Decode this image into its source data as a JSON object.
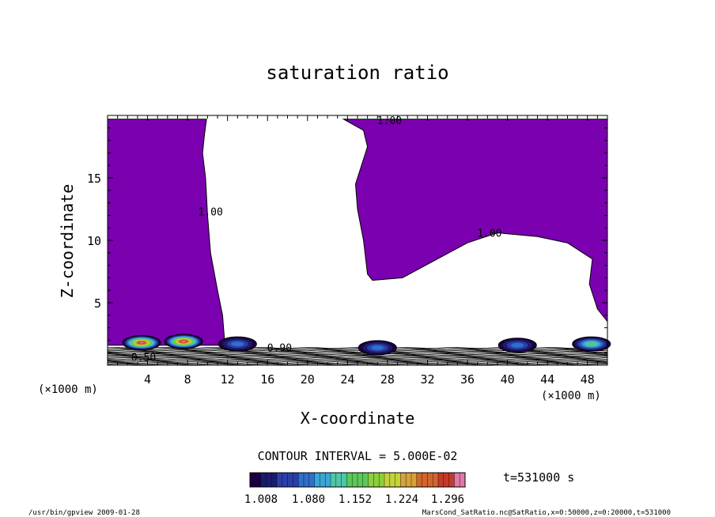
{
  "chart_data": {
    "type": "contour",
    "title": "saturation ratio",
    "xlabel": "X-coordinate",
    "ylabel": "Z-coordinate",
    "x_unit_label": "(×1000 m)",
    "y_unit_label": "(×1000 m)",
    "xlim": [
      0,
      50
    ],
    "ylim": [
      0,
      20
    ],
    "x_ticks": [
      4,
      8,
      12,
      16,
      20,
      24,
      28,
      32,
      36,
      40,
      44,
      48
    ],
    "y_ticks": [
      5,
      10,
      15
    ],
    "contour_interval_text": "CONTOUR INTERVAL = 5.000E-02",
    "contour_labels": [
      {
        "text": "1.00",
        "x": 28.2,
        "z": 19.3
      },
      {
        "text": "1.00",
        "x": 10.3,
        "z": 12.0
      },
      {
        "text": "1.00",
        "x": 38.2,
        "z": 10.3
      },
      {
        "text": "0.90",
        "x": 17.2,
        "z": 1.1
      },
      {
        "text": "0.50",
        "x": 3.6,
        "z": 0.35
      }
    ],
    "supersaturated_region": {
      "fill_value": 1.008,
      "outline_points": [
        [
          0,
          19.7
        ],
        [
          9.9,
          19.7
        ],
        [
          9.7,
          18.5
        ],
        [
          9.5,
          17.0
        ],
        [
          9.8,
          15.0
        ],
        [
          10.0,
          12.0
        ],
        [
          10.3,
          9.0
        ],
        [
          11.0,
          6.0
        ],
        [
          11.5,
          4.0
        ],
        [
          11.7,
          2.0
        ],
        [
          11.5,
          1.6
        ],
        [
          0,
          1.6
        ]
      ],
      "right_outline_points": [
        [
          23.6,
          19.7
        ],
        [
          50,
          19.7
        ],
        [
          50,
          3.5
        ],
        [
          49.0,
          4.5
        ],
        [
          48.2,
          6.5
        ],
        [
          48.5,
          8.5
        ],
        [
          46.0,
          9.8
        ],
        [
          43.0,
          10.3
        ],
        [
          39.0,
          10.6
        ],
        [
          36.0,
          9.8
        ],
        [
          32.5,
          8.3
        ],
        [
          29.5,
          7.0
        ],
        [
          26.5,
          6.8
        ],
        [
          26.0,
          7.3
        ],
        [
          25.6,
          10.0
        ],
        [
          25.0,
          12.5
        ],
        [
          24.8,
          14.5
        ],
        [
          25.4,
          16.0
        ],
        [
          26.0,
          17.5
        ],
        [
          25.6,
          18.8
        ],
        [
          23.6,
          19.7
        ]
      ]
    },
    "cloud_patches": [
      {
        "x": 3.4,
        "z": 1.8,
        "peak": 1.296
      },
      {
        "x": 7.6,
        "z": 1.9,
        "peak": 1.296
      },
      {
        "x": 13.0,
        "z": 1.7,
        "peak": 1.08
      },
      {
        "x": 27.0,
        "z": 1.4,
        "peak": 1.08
      },
      {
        "x": 41.0,
        "z": 1.6,
        "peak": 1.08
      },
      {
        "x": 48.4,
        "z": 1.7,
        "peak": 1.152
      }
    ],
    "colorbar": {
      "tick_labels": [
        "1.008",
        "1.080",
        "1.152",
        "1.224",
        "1.296"
      ],
      "min": 1.008,
      "max": 1.296,
      "colors": [
        "#1a0040",
        "#1c1c6e",
        "#2a3fa8",
        "#2f6fcf",
        "#3aa6d6",
        "#4dc8a6",
        "#5cc85a",
        "#8ecf3c",
        "#c6d23a",
        "#d6a23a",
        "#d2662c",
        "#c43a2a",
        "#e07aa8"
      ]
    },
    "time_label": "t=531000 s",
    "colors": {
      "fill": "#7a00b0",
      "contour_line": "#000000"
    }
  },
  "footer": {
    "left": "/usr/bin/gpview  2009-01-28",
    "right": "MarsCond_SatRatio.nc@SatRatio,x=0:50000,z=0:20000,t=531000"
  }
}
